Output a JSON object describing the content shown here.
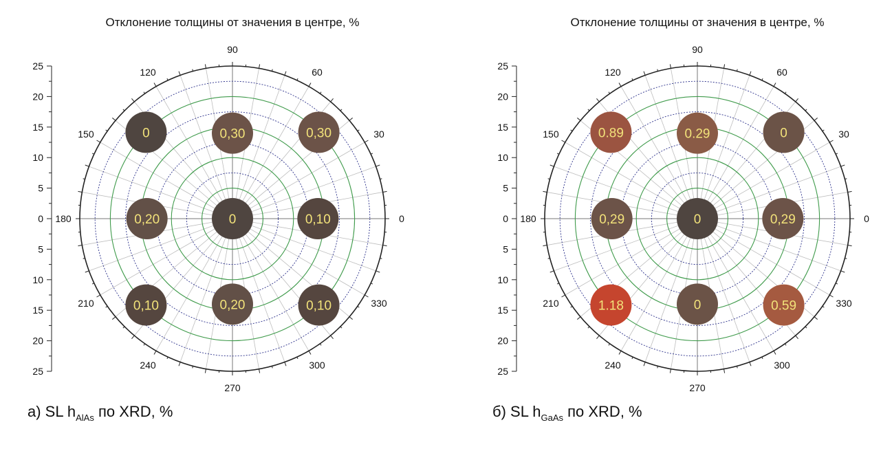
{
  "chart_data": [
    {
      "type": "polar-bubble",
      "title": "Отклонение толщины от значения в центре, %",
      "caption": {
        "prefix": "а) SL h",
        "subscript": "AlAs",
        "suffix": " по XRD, %"
      },
      "radial_ticks": [
        25,
        20,
        15,
        10,
        5,
        0,
        5,
        10,
        15,
        20,
        25
      ],
      "rlim": [
        0,
        25
      ],
      "angle_ticks": [
        0,
        30,
        60,
        90,
        120,
        150,
        180,
        210,
        240,
        270,
        300,
        330
      ],
      "points": [
        {
          "angle": 0,
          "r": 0,
          "label": "0",
          "value": 0,
          "color": "#4f4540"
        },
        {
          "angle": 0,
          "r": 14,
          "label": "0,10",
          "value": 0.1,
          "color": "#55463f"
        },
        {
          "angle": 45,
          "r": 20,
          "label": "0,30",
          "value": 0.3,
          "color": "#6c5348"
        },
        {
          "angle": 90,
          "r": 14,
          "label": "0,30",
          "value": 0.3,
          "color": "#6c5348"
        },
        {
          "angle": 135,
          "r": 20,
          "label": "0",
          "value": 0,
          "color": "#4f4540"
        },
        {
          "angle": 180,
          "r": 14,
          "label": "0,20",
          "value": 0.2,
          "color": "#625047"
        },
        {
          "angle": 225,
          "r": 20,
          "label": "0,10",
          "value": 0.1,
          "color": "#55463f"
        },
        {
          "angle": 270,
          "r": 14,
          "label": "0,20",
          "value": 0.2,
          "color": "#625047"
        },
        {
          "angle": 315,
          "r": 20,
          "label": "0,10",
          "value": 0.1,
          "color": "#55463f"
        }
      ]
    },
    {
      "type": "polar-bubble",
      "title": "Отклонение толщины от значения в центре, %",
      "caption": {
        "prefix": "б) SL h",
        "subscript": "GaAs",
        "suffix": " по XRD, %"
      },
      "radial_ticks": [
        25,
        20,
        15,
        10,
        5,
        0,
        5,
        10,
        15,
        20,
        25
      ],
      "rlim": [
        0,
        25
      ],
      "angle_ticks": [
        0,
        30,
        60,
        90,
        120,
        150,
        180,
        210,
        240,
        270,
        300,
        330
      ],
      "points": [
        {
          "angle": 0,
          "r": 0,
          "label": "0",
          "value": 0,
          "color": "#4f4540"
        },
        {
          "angle": 0,
          "r": 14,
          "label": "0,29",
          "value": 0.29,
          "color": "#6c5348"
        },
        {
          "angle": 45,
          "r": 20,
          "label": "0",
          "value": 0,
          "color": "#6b5347"
        },
        {
          "angle": 90,
          "r": 14,
          "label": "0.29",
          "value": 0.29,
          "color": "#8a5b46"
        },
        {
          "angle": 135,
          "r": 20,
          "label": "0.89",
          "value": 0.89,
          "color": "#9b5441"
        },
        {
          "angle": 180,
          "r": 14,
          "label": "0,29",
          "value": 0.29,
          "color": "#6c5348"
        },
        {
          "angle": 225,
          "r": 20,
          "label": "1.18",
          "value": 1.18,
          "color": "#c5452e"
        },
        {
          "angle": 270,
          "r": 14,
          "label": "0",
          "value": 0,
          "color": "#6b5347"
        },
        {
          "angle": 315,
          "r": 20,
          "label": "0.59",
          "value": 0.59,
          "color": "#a55a40"
        }
      ]
    }
  ],
  "colors": {
    "axis": "#222222",
    "grid_major": "#3e9a4a",
    "grid_minor": "#2a2f8a",
    "spoke": "#bdbdbd",
    "spoke_major": "#777777",
    "bubble_text": "#f2e27a"
  }
}
